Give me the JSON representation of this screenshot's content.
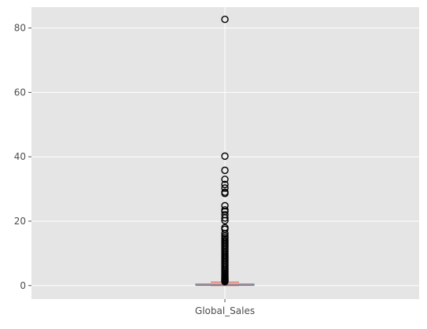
{
  "chart_data": {
    "type": "box",
    "categories": [
      "Global_Sales"
    ],
    "xlabel": "",
    "ylabel": "",
    "title": "",
    "ylim": [
      -4.2,
      86.5
    ],
    "y_ticks": [
      0,
      20,
      40,
      60,
      80
    ],
    "y_tick_labels": [
      "0",
      "20",
      "40",
      "60",
      "80"
    ],
    "grid": true,
    "box": {
      "whisker_low": 0.01,
      "q1": 0.06,
      "median": 0.17,
      "q3": 0.48,
      "whisker_high": 1.1
    },
    "outliers": [
      82.7,
      40.2,
      35.8,
      33.0,
      31.4,
      30.3,
      29.0,
      28.6,
      24.8,
      23.5,
      23.0,
      22.0,
      21.0,
      20.2,
      18.0,
      17.5,
      16.2,
      15.5,
      15.0,
      14.5,
      14.0,
      13.5,
      13.0,
      12.5,
      12.0,
      11.5,
      11.0,
      10.5,
      10.0,
      9.5,
      9.0,
      8.5,
      8.0,
      7.5,
      7.0,
      6.5,
      6.0,
      5.5,
      5.0,
      4.6,
      4.2,
      3.8,
      3.4,
      3.0,
      2.7,
      2.4,
      2.1,
      1.9,
      1.7,
      1.5,
      1.35,
      1.2
    ],
    "colors": {
      "background": "#e5e5e5",
      "grid": "#ffffff",
      "box": "#348abd",
      "median": "#e24a33",
      "whisker": "#e24a33",
      "outlier": "#000000",
      "tick_text": "#4d4d4d"
    }
  }
}
